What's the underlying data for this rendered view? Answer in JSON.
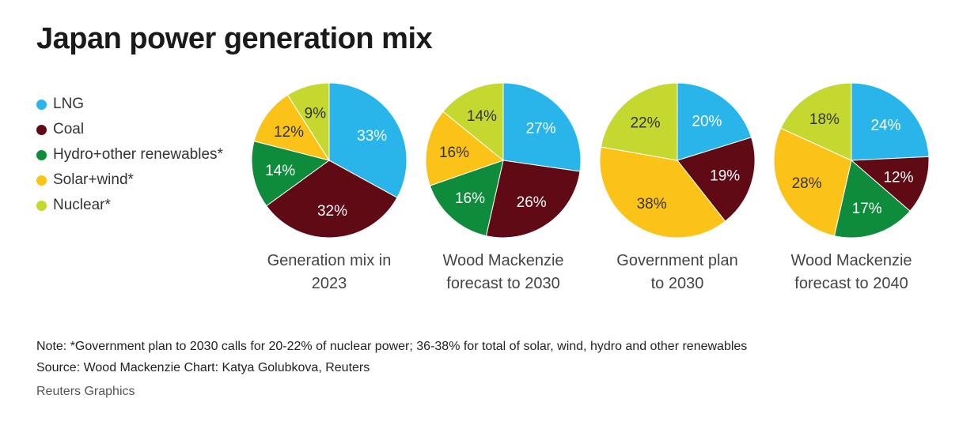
{
  "title": "Japan power generation mix",
  "legend": [
    {
      "label": "LNG",
      "color": "#29b5ea"
    },
    {
      "label": "Coal",
      "color": "#5f0a14"
    },
    {
      "label": "Hydro+other renewables*",
      "color": "#0e8c3b"
    },
    {
      "label": "Solar+wind*",
      "color": "#fbc318"
    },
    {
      "label": "Nuclear*",
      "color": "#c4d830"
    }
  ],
  "chart_data": [
    {
      "type": "pie",
      "title": "Generation mix in 2023",
      "caption_lines": [
        "Generation mix in",
        "2023"
      ],
      "slices": [
        {
          "name": "LNG",
          "value": 33,
          "label": "33%",
          "color": "#29b5ea"
        },
        {
          "name": "Coal",
          "value": 32,
          "label": "32%",
          "color": "#5f0a14"
        },
        {
          "name": "Hydro+other renewables*",
          "value": 14,
          "label": "14%",
          "color": "#0e8c3b"
        },
        {
          "name": "Solar+wind*",
          "value": 12,
          "label": "12%",
          "color": "#fbc318"
        },
        {
          "name": "Nuclear*",
          "value": 9,
          "label": "9%",
          "color": "#c4d830"
        }
      ]
    },
    {
      "type": "pie",
      "title": "Wood Mackenzie forecast to 2030",
      "caption_lines": [
        "Wood Mackenzie",
        "forecast to 2030"
      ],
      "slices": [
        {
          "name": "LNG",
          "value": 27,
          "label": "27%",
          "color": "#29b5ea"
        },
        {
          "name": "Coal",
          "value": 26,
          "label": "26%",
          "color": "#5f0a14"
        },
        {
          "name": "Hydro+other renewables*",
          "value": 16,
          "label": "16%",
          "color": "#0e8c3b"
        },
        {
          "name": "Solar+wind*",
          "value": 16,
          "label": "16%",
          "color": "#fbc318"
        },
        {
          "name": "Nuclear*",
          "value": 14,
          "label": "14%",
          "color": "#c4d830"
        }
      ]
    },
    {
      "type": "pie",
      "title": "Government plan to 2030",
      "caption_lines": [
        "Government plan",
        "to 2030"
      ],
      "slices": [
        {
          "name": "LNG",
          "value": 20,
          "label": "20%",
          "color": "#29b5ea"
        },
        {
          "name": "Coal",
          "value": 19,
          "label": "19%",
          "color": "#5f0a14"
        },
        {
          "name": "Solar+wind*",
          "value": 38,
          "label": "38%",
          "color": "#fbc318"
        },
        {
          "name": "Nuclear*",
          "value": 22,
          "label": "22%",
          "color": "#c4d830"
        }
      ]
    },
    {
      "type": "pie",
      "title": "Wood Mackenzie forecast to 2040",
      "caption_lines": [
        "Wood Mackenzie",
        "forecast to 2040"
      ],
      "slices": [
        {
          "name": "LNG",
          "value": 24,
          "label": "24%",
          "color": "#29b5ea"
        },
        {
          "name": "Coal",
          "value": 12,
          "label": "12%",
          "color": "#5f0a14"
        },
        {
          "name": "Hydro+other renewables*",
          "value": 17,
          "label": "17%",
          "color": "#0e8c3b"
        },
        {
          "name": "Solar+wind*",
          "value": 28,
          "label": "28%",
          "color": "#fbc318"
        },
        {
          "name": "Nuclear*",
          "value": 18,
          "label": "18%",
          "color": "#c4d830"
        }
      ]
    }
  ],
  "note": "Note: *Government plan to 2030 calls for 20-22% of nuclear power; 36-38% for total of solar, wind, hydro and other renewables",
  "source": "Source: Wood Mackenzie Chart: Katya Golubkova, Reuters",
  "credit": "Reuters Graphics"
}
